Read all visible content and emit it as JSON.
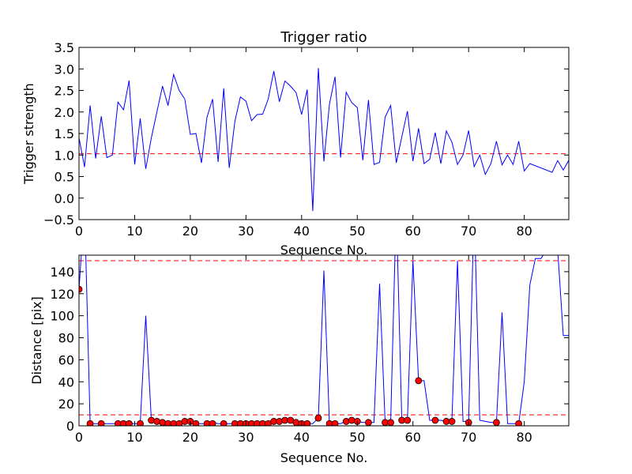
{
  "chart_data": [
    {
      "type": "line",
      "title": "Trigger ratio",
      "xlabel": "Sequence No.",
      "ylabel": "Trigger strength",
      "xlim": [
        0,
        88
      ],
      "ylim": [
        -0.5,
        3.5
      ],
      "xticks": [
        "0",
        "10",
        "20",
        "30",
        "40",
        "50",
        "60",
        "70",
        "80"
      ],
      "yticks": [
        "−0.5",
        "0.0",
        "0.5",
        "1.0",
        "1.5",
        "2.0",
        "2.5",
        "3.0",
        "3.5"
      ],
      "threshold": 1.03,
      "colors": {
        "line": "#0000ff",
        "threshold": "#ff0000"
      },
      "series": [
        {
          "x": [
            0,
            1,
            2,
            3,
            4,
            5,
            6,
            7,
            8,
            9,
            10,
            11,
            12,
            13,
            14,
            15,
            16,
            17,
            18,
            19,
            20,
            21,
            22,
            23,
            24,
            25,
            26,
            27,
            28,
            29,
            30,
            31,
            32,
            33,
            34,
            35,
            36,
            37,
            38,
            39,
            40,
            41,
            42,
            43,
            44,
            45,
            46,
            47,
            48,
            49,
            50,
            51,
            52,
            53,
            54,
            55,
            56,
            57,
            58,
            59,
            60,
            61,
            62,
            63,
            64,
            65,
            66,
            67,
            68,
            69,
            70,
            71,
            72,
            73,
            74,
            75,
            76,
            77,
            78,
            79,
            80,
            81,
            85,
            86,
            87,
            88
          ],
          "y": [
            1.4,
            0.72,
            2.15,
            0.92,
            1.9,
            0.94,
            1.0,
            2.23,
            2.05,
            2.73,
            0.78,
            1.85,
            0.68,
            1.4,
            2.0,
            2.6,
            2.15,
            2.87,
            2.5,
            2.3,
            1.48,
            1.5,
            0.82,
            1.88,
            2.3,
            0.84,
            2.55,
            0.7,
            1.78,
            2.35,
            2.25,
            1.8,
            1.94,
            1.95,
            2.3,
            2.95,
            2.24,
            2.72,
            2.6,
            2.45,
            1.94,
            2.52,
            -0.3,
            3.02,
            0.85,
            2.18,
            2.82,
            0.94,
            2.46,
            2.22,
            2.1,
            0.88,
            2.28,
            0.78,
            0.83,
            1.88,
            2.15,
            0.82,
            1.42,
            2.02,
            0.86,
            1.62,
            0.8,
            0.9,
            1.52,
            0.8,
            1.56,
            1.3,
            0.78,
            1.0,
            1.57,
            0.73,
            1.0,
            0.55,
            0.8,
            1.32,
            0.77,
            1.0,
            0.78,
            1.32,
            0.63,
            0.8,
            0.6,
            0.87,
            0.65,
            0.88
          ]
        }
      ]
    },
    {
      "type": "line",
      "title": "",
      "xlabel": "Sequence No.",
      "ylabel": "Distance [pix]",
      "xlim": [
        0,
        88
      ],
      "ylim": [
        0,
        155
      ],
      "xticks": [
        "0",
        "10",
        "20",
        "30",
        "40",
        "50",
        "60",
        "70",
        "80"
      ],
      "yticks": [
        "0",
        "20",
        "40",
        "60",
        "80",
        "100",
        "120",
        "140"
      ],
      "thresholds": [
        10,
        150
      ],
      "colors": {
        "line": "#0000ff",
        "threshold": "#ff0000",
        "marker": "#ff0000"
      },
      "series": [
        {
          "x": [
            0,
            1,
            2,
            3,
            4,
            5,
            6,
            7,
            8,
            9,
            10,
            11,
            12,
            13,
            14,
            15,
            16,
            17,
            18,
            19,
            20,
            21,
            22,
            23,
            24,
            25,
            26,
            27,
            28,
            29,
            30,
            31,
            32,
            33,
            34,
            35,
            36,
            37,
            38,
            39,
            40,
            41,
            42,
            43,
            44,
            45,
            46,
            47,
            48,
            49,
            50,
            51,
            52,
            53,
            54,
            55,
            56,
            57,
            58,
            59,
            60,
            61,
            62,
            63,
            64,
            65,
            66,
            67,
            68,
            69,
            70,
            71,
            72,
            73,
            74,
            75,
            76,
            77,
            78,
            79,
            80,
            81,
            82,
            83,
            84,
            85,
            86,
            87,
            88
          ],
          "y": [
            124,
            200,
            2,
            2,
            2,
            2,
            2,
            2,
            2,
            2,
            2,
            2,
            100,
            5,
            4,
            3,
            2,
            2,
            2,
            4,
            4,
            2,
            2,
            2,
            3,
            2,
            2,
            2,
            2,
            2,
            2,
            2,
            2,
            2,
            2,
            4,
            4,
            5,
            5,
            3,
            2,
            2,
            2,
            7,
            141,
            2,
            2,
            2,
            4,
            5,
            4,
            3,
            3,
            3,
            129,
            3,
            3,
            200,
            5,
            5,
            150,
            41,
            41,
            5,
            5,
            5,
            4,
            4,
            150,
            4,
            4,
            200,
            5,
            4,
            3,
            3,
            103,
            2,
            2,
            2,
            40,
            128,
            152,
            152,
            160,
            160,
            160,
            82,
            82
          ]
        }
      ],
      "markers": {
        "x": [
          0,
          2,
          4,
          7,
          8,
          9,
          11,
          13,
          14,
          15,
          16,
          17,
          18,
          19,
          20,
          21,
          23,
          24,
          26,
          28,
          29,
          30,
          31,
          32,
          33,
          34,
          35,
          36,
          37,
          38,
          39,
          40,
          41,
          43,
          45,
          46,
          48,
          49,
          50,
          52,
          55,
          56,
          58,
          59,
          61,
          64,
          66,
          67,
          70,
          75,
          79
        ],
        "y": [
          124,
          2,
          2,
          2,
          2,
          2,
          2,
          5,
          4,
          3,
          2,
          2,
          2,
          4,
          4,
          2,
          2,
          2,
          2,
          2,
          2,
          2,
          2,
          2,
          2,
          2,
          4,
          4,
          5,
          5,
          3,
          2,
          2,
          7,
          2,
          2,
          4,
          5,
          4,
          3,
          3,
          3,
          5,
          5,
          41,
          5,
          4,
          4,
          3,
          3,
          2
        ]
      }
    }
  ]
}
